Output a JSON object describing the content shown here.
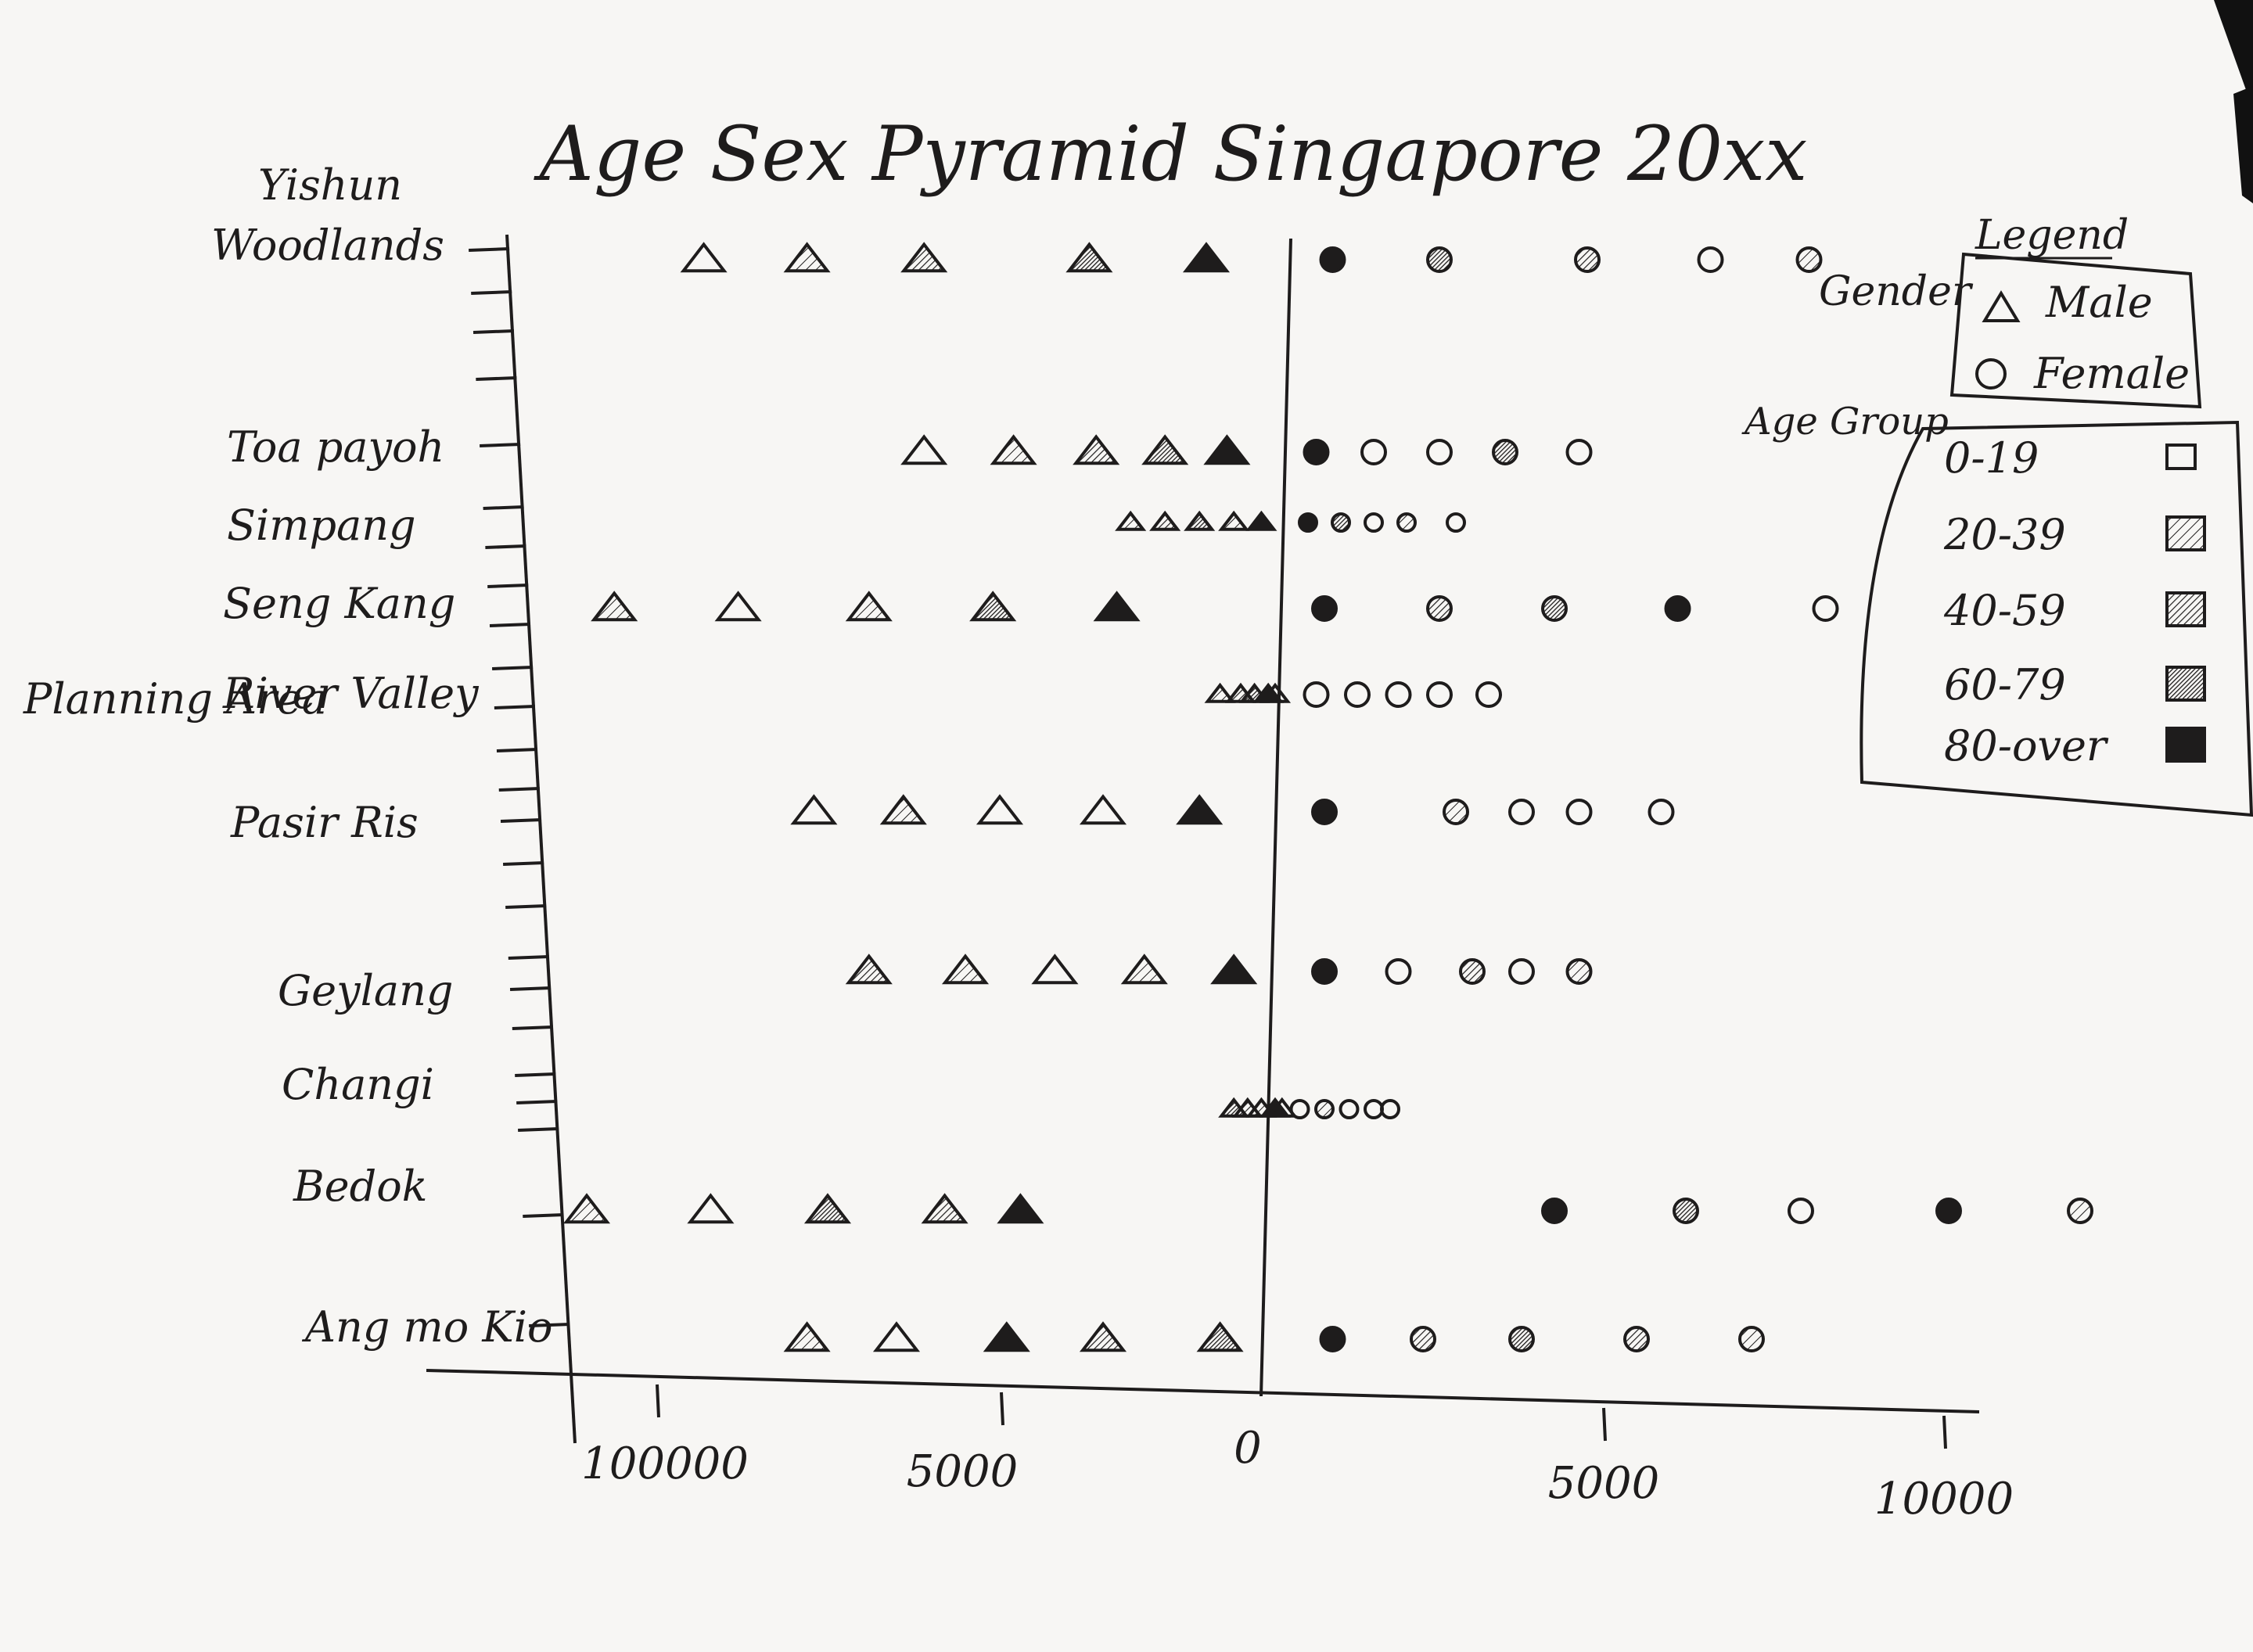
{
  "chart_data": {
    "type": "scatter",
    "title": "Age Sex Pyramid Singapore 20xx",
    "ylabel": "Planning Area",
    "categories": [
      "Yishun",
      "Woodlands",
      "Toa payoh",
      "Simpang",
      "Seng Kang",
      "River Valley",
      "Pasir Ris",
      "Geylang",
      "Changi",
      "Bedok",
      "Ang mo Kio"
    ],
    "x_ticks": [
      "100000",
      "5000",
      "0",
      "5000",
      "10000"
    ],
    "xlim": [
      -10000,
      10000
    ],
    "grid": false,
    "legend_position": "top-right",
    "legend": {
      "title": "Legend",
      "gender_label": "Gender",
      "genders": [
        {
          "label": "Male",
          "marker": "triangle"
        },
        {
          "label": "Female",
          "marker": "circle"
        }
      ],
      "age_label": "Age Group",
      "age_groups": [
        {
          "label": "0-19",
          "fill": "none"
        },
        {
          "label": "20-39",
          "fill": "light hatch"
        },
        {
          "label": "40-59",
          "fill": "medium hatch"
        },
        {
          "label": "60-79",
          "fill": "dense hatch"
        },
        {
          "label": "80-over",
          "fill": "solid"
        }
      ]
    },
    "series": [
      {
        "area": "Woodlands",
        "male": [
          -8300,
          -6800,
          -5100,
          -2700,
          -1000
        ],
        "female": [
          700,
          2000,
          3800,
          5300,
          6500
        ],
        "male_fills": [
          0,
          1,
          2,
          3,
          4
        ],
        "female_fills": [
          4,
          3,
          2,
          0,
          1
        ]
      },
      {
        "area": "Toa payoh",
        "male": [
          -5100,
          -3800,
          -2600,
          -1600,
          -700
        ],
        "female": [
          500,
          1200,
          2000,
          2800,
          3700
        ],
        "male_fills": [
          0,
          1,
          2,
          3,
          4
        ],
        "female_fills": [
          4,
          0,
          0,
          3,
          0
        ]
      },
      {
        "area": "Simpang",
        "male": [
          -2100,
          -1600,
          -1100,
          -600,
          -200
        ],
        "female": [
          400,
          800,
          1200,
          1600,
          2200
        ],
        "male_fills": [
          1,
          2,
          3,
          1,
          4
        ],
        "female_fills": [
          4,
          3,
          0,
          1,
          0
        ]
      },
      {
        "area": "Seng Kang",
        "male": [
          -9600,
          -7800,
          -5900,
          -4100,
          -2300
        ],
        "female": [
          600,
          2000,
          3400,
          4900,
          6700
        ],
        "male_fills": [
          1,
          0,
          1,
          3,
          4
        ],
        "female_fills": [
          4,
          2,
          3,
          4,
          0
        ]
      },
      {
        "area": "River Valley",
        "male": [
          -800,
          -500,
          -300,
          -100,
          0
        ],
        "female": [
          500,
          1000,
          1500,
          2000,
          2600
        ],
        "male_fills": [
          1,
          2,
          3,
          4,
          0
        ],
        "female_fills": [
          0,
          0,
          0,
          0,
          0
        ]
      },
      {
        "area": "Pasir Ris",
        "male": [
          -6700,
          -5400,
          -4000,
          -2500,
          -1100
        ],
        "female": [
          600,
          2200,
          3000,
          3700,
          4700
        ],
        "male_fills": [
          0,
          1,
          0,
          0,
          4
        ],
        "female_fills": [
          4,
          1,
          0,
          0,
          0
        ]
      },
      {
        "area": "Geylang",
        "male": [
          -5900,
          -4500,
          -3200,
          -1900,
          -600
        ],
        "female": [
          600,
          1500,
          2400,
          3000,
          3700
        ],
        "male_fills": [
          2,
          1,
          0,
          1,
          4
        ],
        "female_fills": [
          4,
          0,
          2,
          0,
          1
        ]
      },
      {
        "area": "Changi",
        "male": [
          -600,
          -400,
          -200,
          0,
          100
        ],
        "female": [
          300,
          600,
          900,
          1200,
          1400
        ],
        "male_fills": [
          3,
          2,
          1,
          4,
          0
        ],
        "female_fills": [
          0,
          1,
          0,
          0,
          0
        ]
      },
      {
        "area": "Bedok",
        "male": [
          -10000,
          -8200,
          -6500,
          -4800,
          -3700
        ],
        "female": [
          3400,
          5000,
          6400,
          8200,
          9800
        ],
        "male_fills": [
          1,
          0,
          3,
          2,
          4
        ],
        "female_fills": [
          4,
          3,
          0,
          4,
          1
        ]
      },
      {
        "area": "Ang mo Kio",
        "male": [
          -6800,
          -5500,
          -3900,
          -2500,
          -800
        ],
        "female": [
          700,
          1800,
          3000,
          4400,
          5800
        ],
        "male_fills": [
          1,
          0,
          4,
          2,
          3
        ],
        "female_fills": [
          4,
          2,
          3,
          2,
          1
        ]
      }
    ]
  }
}
